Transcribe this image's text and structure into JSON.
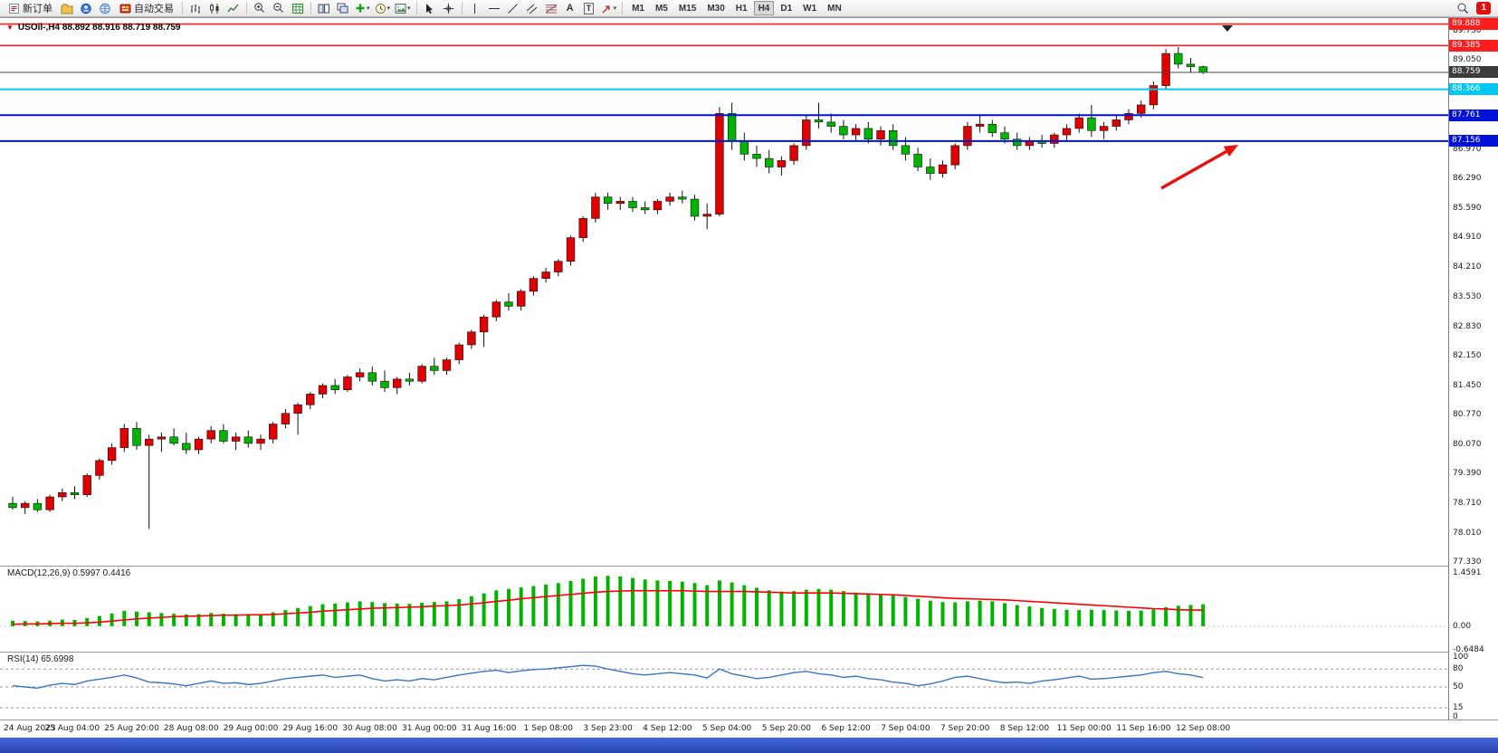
{
  "toolbar": {
    "new_order_label": "新订单",
    "autotrading_label": "自动交易",
    "timeframes": [
      "M1",
      "M5",
      "M15",
      "M30",
      "H1",
      "H4",
      "D1",
      "W1",
      "MN"
    ],
    "active_timeframe": "H4",
    "notification_count": "1",
    "caret": "▾",
    "text_tool": "A",
    "textbox_tool": "T"
  },
  "chart": {
    "title": "USOil-,H4  88.892 88.916 88.719 88.759",
    "menu_marker": "▼"
  },
  "indicators": {
    "macd_label": "MACD(12,26,9) 0.5997 0.4416",
    "rsi_label": "RSI(14) 65.6998"
  },
  "price_axis": {
    "labels": [
      "89.730",
      "89.050",
      "88.370",
      "87.670",
      "86.970",
      "86.290",
      "85.590",
      "84.910",
      "84.210",
      "83.530",
      "82.830",
      "82.150",
      "81.450",
      "80.770",
      "80.070",
      "79.390",
      "78.710",
      "78.010",
      "77.330"
    ]
  },
  "levels": [
    {
      "label": "89.888",
      "price": 89.888,
      "color": "#ff1e1e",
      "line_width": 1.6
    },
    {
      "label": "89.385",
      "price": 89.385,
      "color": "#ff1e1e",
      "line_width": 1.6
    },
    {
      "label": "88.759",
      "price": 88.759,
      "color": "#4d4d4d",
      "line_width": 1,
      "tag_color": "#3c3c3c"
    },
    {
      "label": "88.366",
      "price": 88.366,
      "color": "#00c8f0",
      "line_width": 2
    },
    {
      "label": "87.761",
      "price": 87.761,
      "color": "#0012d8",
      "line_width": 2
    },
    {
      "label": "87.156",
      "price": 87.156,
      "color": "#0012d8",
      "line_width": 2
    }
  ],
  "annotations": {
    "arrow": {
      "tail": [
        1283,
        188
      ],
      "head": [
        1368,
        140
      ],
      "color": "#e81010"
    }
  },
  "chart_data": [
    {
      "type": "candlestick",
      "symbol": "USOil-",
      "timeframe": "H4",
      "up_color": "#e00000",
      "down_color": "#00b400",
      "y_axis": {
        "top_price": 89.73,
        "bottom_price": 77.33
      },
      "x_labels": [
        "24 Aug 2023",
        "25 Aug 04:00",
        "25 Aug 20:00",
        "28 Aug 08:00",
        "29 Aug 00:00",
        "29 Aug 16:00",
        "30 Aug 08:00",
        "31 Aug 00:00",
        "31 Aug 16:00",
        "1 Sep 08:00",
        "3 Sep 23:00",
        "4 Sep 12:00",
        "5 Sep 04:00",
        "5 Sep 20:00",
        "6 Sep 12:00",
        "7 Sep 04:00",
        "7 Sep 20:00",
        "8 Sep 12:00",
        "11 Sep 00:00",
        "11 Sep 16:00",
        "12 Sep 08:00"
      ],
      "ohlc": [
        [
          78.7,
          78.85,
          78.55,
          78.6
        ],
        [
          78.6,
          78.75,
          78.45,
          78.7
        ],
        [
          78.7,
          78.8,
          78.5,
          78.55
        ],
        [
          78.55,
          78.9,
          78.5,
          78.85
        ],
        [
          78.85,
          79.05,
          78.75,
          78.95
        ],
        [
          78.95,
          79.1,
          78.8,
          78.9
        ],
        [
          78.9,
          79.4,
          78.85,
          79.35
        ],
        [
          79.35,
          79.75,
          79.25,
          79.7
        ],
        [
          79.7,
          80.1,
          79.6,
          80.0
        ],
        [
          80.0,
          80.55,
          79.9,
          80.45
        ],
        [
          80.45,
          80.6,
          79.95,
          80.05
        ],
        [
          80.05,
          80.3,
          78.1,
          80.2
        ],
        [
          80.2,
          80.35,
          79.9,
          80.25
        ],
        [
          80.25,
          80.45,
          80.05,
          80.1
        ],
        [
          80.1,
          80.35,
          79.85,
          79.95
        ],
        [
          79.95,
          80.25,
          79.85,
          80.2
        ],
        [
          80.2,
          80.5,
          80.1,
          80.4
        ],
        [
          80.4,
          80.55,
          80.1,
          80.15
        ],
        [
          80.15,
          80.35,
          79.95,
          80.25
        ],
        [
          80.25,
          80.4,
          80.0,
          80.1
        ],
        [
          80.1,
          80.3,
          79.95,
          80.2
        ],
        [
          80.2,
          80.6,
          80.1,
          80.55
        ],
        [
          80.55,
          80.9,
          80.45,
          80.8
        ],
        [
          80.8,
          81.05,
          80.3,
          81.0
        ],
        [
          81.0,
          81.3,
          80.9,
          81.25
        ],
        [
          81.25,
          81.5,
          81.15,
          81.45
        ],
        [
          81.45,
          81.6,
          81.25,
          81.35
        ],
        [
          81.35,
          81.7,
          81.3,
          81.65
        ],
        [
          81.65,
          81.85,
          81.55,
          81.75
        ],
        [
          81.75,
          81.9,
          81.45,
          81.55
        ],
        [
          81.55,
          81.8,
          81.3,
          81.4
        ],
        [
          81.4,
          81.65,
          81.25,
          81.6
        ],
        [
          81.6,
          81.75,
          81.45,
          81.55
        ],
        [
          81.55,
          81.95,
          81.5,
          81.9
        ],
        [
          81.9,
          82.1,
          81.7,
          81.8
        ],
        [
          81.8,
          82.1,
          81.7,
          82.05
        ],
        [
          82.05,
          82.45,
          81.95,
          82.4
        ],
        [
          82.4,
          82.75,
          82.3,
          82.7
        ],
        [
          82.7,
          83.1,
          82.35,
          83.05
        ],
        [
          83.05,
          83.45,
          82.95,
          83.4
        ],
        [
          83.4,
          83.6,
          83.2,
          83.3
        ],
        [
          83.3,
          83.7,
          83.2,
          83.65
        ],
        [
          83.65,
          84.0,
          83.55,
          83.95
        ],
        [
          83.95,
          84.2,
          83.85,
          84.1
        ],
        [
          84.1,
          84.4,
          84.0,
          84.35
        ],
        [
          84.35,
          84.95,
          84.25,
          84.9
        ],
        [
          84.9,
          85.4,
          84.8,
          85.35
        ],
        [
          85.35,
          85.95,
          85.25,
          85.85
        ],
        [
          85.85,
          85.95,
          85.55,
          85.7
        ],
        [
          85.7,
          85.85,
          85.55,
          85.75
        ],
        [
          85.75,
          85.85,
          85.5,
          85.6
        ],
        [
          85.6,
          85.75,
          85.45,
          85.55
        ],
        [
          85.55,
          85.8,
          85.45,
          85.75
        ],
        [
          85.75,
          85.95,
          85.65,
          85.85
        ],
        [
          85.85,
          86.0,
          85.7,
          85.8
        ],
        [
          85.8,
          85.9,
          85.3,
          85.4
        ],
        [
          85.4,
          85.7,
          85.1,
          85.45
        ],
        [
          85.45,
          87.95,
          85.4,
          87.8
        ],
        [
          87.8,
          88.05,
          86.95,
          87.15
        ],
        [
          87.15,
          87.35,
          86.7,
          86.85
        ],
        [
          86.85,
          87.05,
          86.55,
          86.75
        ],
        [
          86.75,
          86.95,
          86.4,
          86.55
        ],
        [
          86.55,
          86.8,
          86.35,
          86.7
        ],
        [
          86.7,
          87.1,
          86.6,
          87.05
        ],
        [
          87.05,
          87.75,
          86.95,
          87.65
        ],
        [
          87.65,
          88.05,
          87.45,
          87.6
        ],
        [
          87.6,
          87.8,
          87.35,
          87.5
        ],
        [
          87.5,
          87.65,
          87.2,
          87.3
        ],
        [
          87.3,
          87.55,
          87.15,
          87.45
        ],
        [
          87.45,
          87.6,
          87.1,
          87.2
        ],
        [
          87.2,
          87.5,
          87.05,
          87.4
        ],
        [
          87.4,
          87.55,
          86.95,
          87.05
        ],
        [
          87.05,
          87.25,
          86.7,
          86.85
        ],
        [
          86.85,
          87.0,
          86.45,
          86.55
        ],
        [
          86.55,
          86.75,
          86.25,
          86.4
        ],
        [
          86.4,
          86.7,
          86.3,
          86.6
        ],
        [
          86.6,
          87.1,
          86.5,
          87.05
        ],
        [
          87.05,
          87.6,
          86.95,
          87.5
        ],
        [
          87.5,
          87.75,
          87.35,
          87.55
        ],
        [
          87.55,
          87.65,
          87.25,
          87.35
        ],
        [
          87.35,
          87.5,
          87.1,
          87.2
        ],
        [
          87.2,
          87.35,
          86.95,
          87.05
        ],
        [
          87.05,
          87.25,
          86.95,
          87.15
        ],
        [
          87.15,
          87.3,
          87.0,
          87.1
        ],
        [
          87.1,
          87.35,
          87.0,
          87.3
        ],
        [
          87.3,
          87.55,
          87.15,
          87.45
        ],
        [
          87.45,
          87.8,
          87.35,
          87.7
        ],
        [
          87.7,
          88.0,
          87.25,
          87.4
        ],
        [
          87.4,
          87.6,
          87.2,
          87.5
        ],
        [
          87.5,
          87.75,
          87.4,
          87.65
        ],
        [
          87.65,
          87.9,
          87.55,
          87.8
        ],
        [
          87.8,
          88.1,
          87.7,
          88.0
        ],
        [
          88.0,
          88.55,
          87.9,
          88.45
        ],
        [
          88.45,
          89.3,
          88.35,
          89.2
        ],
        [
          89.2,
          89.35,
          88.85,
          88.95
        ],
        [
          88.95,
          89.1,
          88.75,
          88.89
        ],
        [
          88.892,
          88.916,
          88.719,
          88.759
        ]
      ]
    },
    {
      "type": "bar",
      "name": "MACD(12,26,9)",
      "current_values": "0.5997 0.4416",
      "color": "#00b400",
      "signal_color": "#ff0000",
      "y_range": [
        -0.6484,
        1.4591
      ],
      "axis": [
        {
          "label": "1.4591",
          "value": 1.4591
        },
        {
          "label": "0.00",
          "value": 0
        },
        {
          "label": "-0.6484",
          "value": -0.6484
        }
      ],
      "values": [
        0.15,
        0.14,
        0.13,
        0.15,
        0.18,
        0.17,
        0.22,
        0.28,
        0.35,
        0.42,
        0.4,
        0.38,
        0.36,
        0.34,
        0.32,
        0.33,
        0.36,
        0.34,
        0.33,
        0.32,
        0.33,
        0.38,
        0.44,
        0.5,
        0.55,
        0.6,
        0.62,
        0.65,
        0.68,
        0.66,
        0.63,
        0.62,
        0.61,
        0.64,
        0.66,
        0.68,
        0.74,
        0.82,
        0.9,
        0.98,
        1.02,
        1.06,
        1.1,
        1.14,
        1.18,
        1.24,
        1.3,
        1.36,
        1.38,
        1.36,
        1.32,
        1.28,
        1.25,
        1.24,
        1.22,
        1.18,
        1.12,
        1.25,
        1.2,
        1.12,
        1.05,
        0.98,
        0.95,
        0.96,
        1.0,
        1.02,
        1.0,
        0.96,
        0.92,
        0.9,
        0.88,
        0.84,
        0.8,
        0.75,
        0.7,
        0.66,
        0.65,
        0.68,
        0.7,
        0.68,
        0.63,
        0.58,
        0.54,
        0.5,
        0.47,
        0.45,
        0.44,
        0.45,
        0.44,
        0.43,
        0.42,
        0.43,
        0.46,
        0.52,
        0.56,
        0.58,
        0.6
      ],
      "signal": [
        0.05,
        0.06,
        0.06,
        0.07,
        0.08,
        0.08,
        0.09,
        0.11,
        0.14,
        0.17,
        0.2,
        0.22,
        0.24,
        0.26,
        0.27,
        0.28,
        0.29,
        0.3,
        0.3,
        0.31,
        0.31,
        0.32,
        0.34,
        0.36,
        0.38,
        0.41,
        0.43,
        0.45,
        0.47,
        0.49,
        0.5,
        0.51,
        0.52,
        0.53,
        0.55,
        0.56,
        0.58,
        0.61,
        0.64,
        0.68,
        0.71,
        0.75,
        0.78,
        0.81,
        0.84,
        0.87,
        0.9,
        0.93,
        0.95,
        0.96,
        0.97,
        0.97,
        0.97,
        0.97,
        0.97,
        0.96,
        0.95,
        0.95,
        0.95,
        0.95,
        0.94,
        0.93,
        0.92,
        0.91,
        0.91,
        0.91,
        0.91,
        0.9,
        0.89,
        0.88,
        0.87,
        0.86,
        0.84,
        0.82,
        0.8,
        0.78,
        0.76,
        0.75,
        0.74,
        0.73,
        0.72,
        0.7,
        0.68,
        0.66,
        0.64,
        0.62,
        0.6,
        0.58,
        0.56,
        0.54,
        0.52,
        0.5,
        0.48,
        0.47,
        0.45,
        0.44,
        0.44
      ]
    },
    {
      "type": "line",
      "name": "RSI(14)",
      "current_value": "65.6998",
      "color": "#3a76c0",
      "levels": [
        80,
        50,
        15
      ],
      "axis": [
        {
          "label": "100",
          "value": 100
        },
        {
          "label": "80",
          "value": 80
        },
        {
          "label": "50",
          "value": 50
        },
        {
          "label": "15",
          "value": 15
        },
        {
          "label": "0",
          "value": 0
        }
      ],
      "values": [
        52,
        50,
        48,
        53,
        56,
        54,
        60,
        63,
        66,
        70,
        65,
        58,
        57,
        55,
        52,
        56,
        60,
        56,
        57,
        54,
        56,
        60,
        64,
        66,
        68,
        70,
        66,
        68,
        70,
        64,
        60,
        62,
        60,
        64,
        62,
        66,
        70,
        73,
        76,
        78,
        74,
        77,
        79,
        80,
        82,
        84,
        86,
        85,
        80,
        76,
        72,
        70,
        72,
        74,
        72,
        70,
        65,
        80,
        72,
        68,
        64,
        66,
        70,
        74,
        76,
        72,
        70,
        66,
        68,
        64,
        62,
        58,
        56,
        52,
        55,
        60,
        66,
        68,
        64,
        60,
        57,
        58,
        56,
        60,
        62,
        65,
        68,
        63,
        64,
        66,
        68,
        70,
        74,
        76,
        72,
        70,
        65.7
      ]
    }
  ]
}
